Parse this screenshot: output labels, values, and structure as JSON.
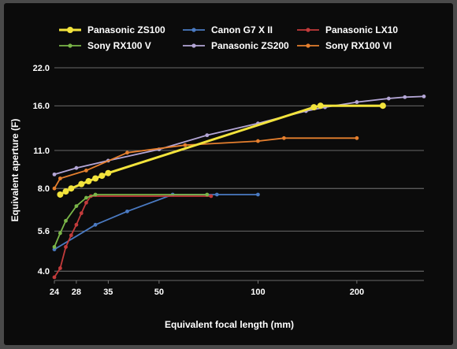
{
  "chart_data": {
    "type": "line",
    "title": "",
    "xlabel": "Equivalent focal length (mm)",
    "ylabel": "Equivalent aperture (F)",
    "x_scale": "log",
    "y_scale": "log",
    "xlim": [
      24,
      320
    ],
    "ylim": [
      3.7,
      22.0
    ],
    "x_ticks": [
      {
        "value": 24,
        "label": "24"
      },
      {
        "value": 28,
        "label": "28"
      },
      {
        "value": 35,
        "label": "35"
      },
      {
        "value": 50,
        "label": "50"
      },
      {
        "value": 100,
        "label": "100"
      },
      {
        "value": 200,
        "label": "200"
      }
    ],
    "y_ticks": [
      {
        "value": 4.0,
        "label": "4.0"
      },
      {
        "value": 5.6,
        "label": "5.6"
      },
      {
        "value": 8.0,
        "label": "8.0"
      },
      {
        "value": 11.0,
        "label": "11.0"
      },
      {
        "value": 16.0,
        "label": "16.0"
      },
      {
        "value": 22.0,
        "label": "22.0"
      }
    ],
    "grid": "horizontal",
    "legend_position": "top",
    "background": "#0b0b0b",
    "series": [
      {
        "name": "Panasonic ZS100",
        "color": "#f2e33c",
        "bold": true,
        "points": [
          [
            25,
            7.6
          ],
          [
            26,
            7.8
          ],
          [
            27,
            8.0
          ],
          [
            29,
            8.3
          ],
          [
            30.5,
            8.5
          ],
          [
            32,
            8.7
          ],
          [
            33.5,
            8.9
          ],
          [
            35,
            9.1
          ],
          [
            148,
            15.8
          ],
          [
            155,
            16.0
          ],
          [
            240,
            16.0
          ]
        ]
      },
      {
        "name": "Canon G7 X II",
        "color": "#4a7ac2",
        "bold": false,
        "points": [
          [
            24,
            4.8
          ],
          [
            32,
            5.9
          ],
          [
            40,
            6.6
          ],
          [
            55,
            7.6
          ],
          [
            75,
            7.6
          ],
          [
            100,
            7.6
          ]
        ]
      },
      {
        "name": "Panasonic LX10",
        "color": "#c23b3b",
        "bold": false,
        "points": [
          [
            24,
            3.8
          ],
          [
            25,
            4.1
          ],
          [
            26,
            4.9
          ],
          [
            27,
            5.4
          ],
          [
            28,
            5.9
          ],
          [
            29,
            6.5
          ],
          [
            30,
            7.1
          ],
          [
            31,
            7.5
          ],
          [
            72,
            7.5
          ]
        ]
      },
      {
        "name": "Sony RX100 V",
        "color": "#7ab648",
        "bold": false,
        "points": [
          [
            24,
            4.9
          ],
          [
            25,
            5.5
          ],
          [
            26,
            6.1
          ],
          [
            28,
            6.9
          ],
          [
            30,
            7.4
          ],
          [
            32,
            7.6
          ],
          [
            70,
            7.6
          ]
        ]
      },
      {
        "name": "Panasonic ZS200",
        "color": "#b4a6d6",
        "bold": false,
        "points": [
          [
            24,
            9.0
          ],
          [
            28,
            9.5
          ],
          [
            35,
            10.1
          ],
          [
            50,
            11.1
          ],
          [
            70,
            12.5
          ],
          [
            100,
            13.8
          ],
          [
            140,
            15.3
          ],
          [
            160,
            15.8
          ],
          [
            200,
            16.5
          ],
          [
            250,
            17.0
          ],
          [
            280,
            17.2
          ],
          [
            320,
            17.3
          ]
        ]
      },
      {
        "name": "Sony RX100 VI",
        "color": "#e57f2e",
        "bold": false,
        "points": [
          [
            24,
            8.0
          ],
          [
            25,
            8.7
          ],
          [
            30,
            9.3
          ],
          [
            40,
            10.8
          ],
          [
            60,
            11.5
          ],
          [
            100,
            11.9
          ],
          [
            120,
            12.2
          ],
          [
            200,
            12.2
          ]
        ]
      }
    ]
  }
}
